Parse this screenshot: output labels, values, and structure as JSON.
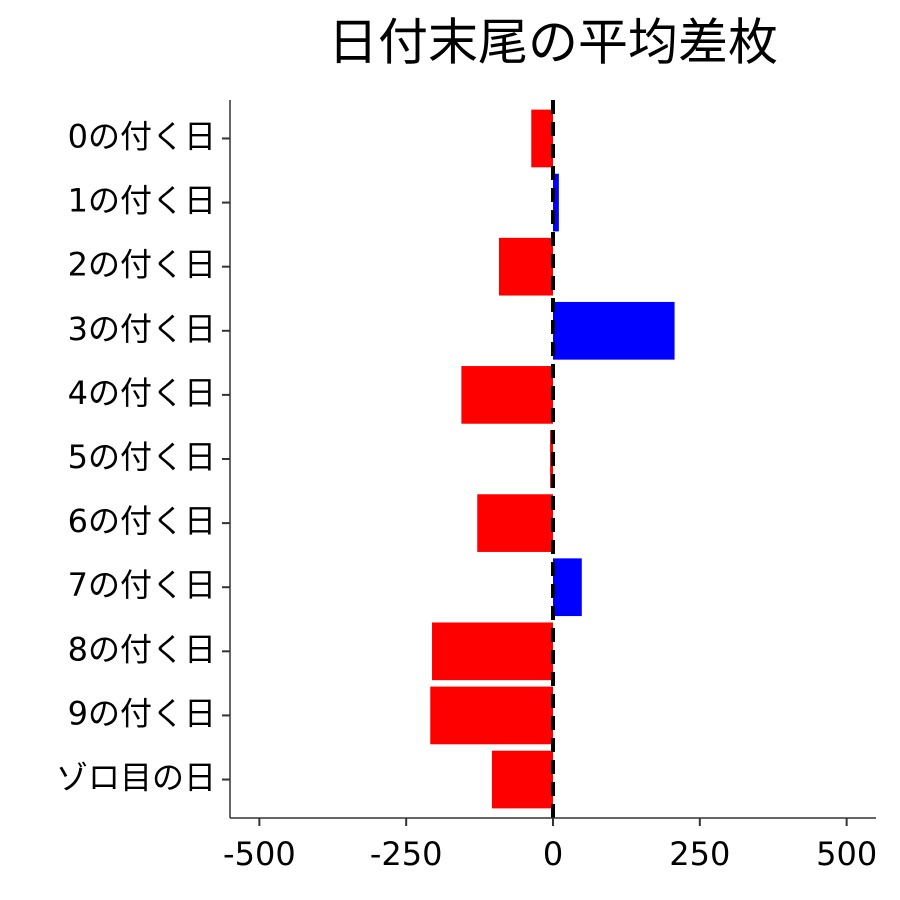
{
  "chart_data": {
    "type": "bar",
    "orientation": "horizontal",
    "title": "日付末尾の平均差枚",
    "categories": [
      "0の付く日",
      "1の付く日",
      "2の付く日",
      "3の付く日",
      "4の付く日",
      "5の付く日",
      "6の付く日",
      "7の付く日",
      "8の付く日",
      "9の付く日",
      "ゾロ目の日"
    ],
    "values": [
      -37,
      10,
      -92,
      207,
      -156,
      -5,
      -129,
      49,
      -206,
      -209,
      -104
    ],
    "color_positive": "#0000ff",
    "color_negative": "#ff0000",
    "xlim": [
      -550,
      550
    ],
    "xticks": [
      -500,
      -250,
      0,
      250,
      500
    ],
    "reference_line": 0,
    "grid": false
  }
}
